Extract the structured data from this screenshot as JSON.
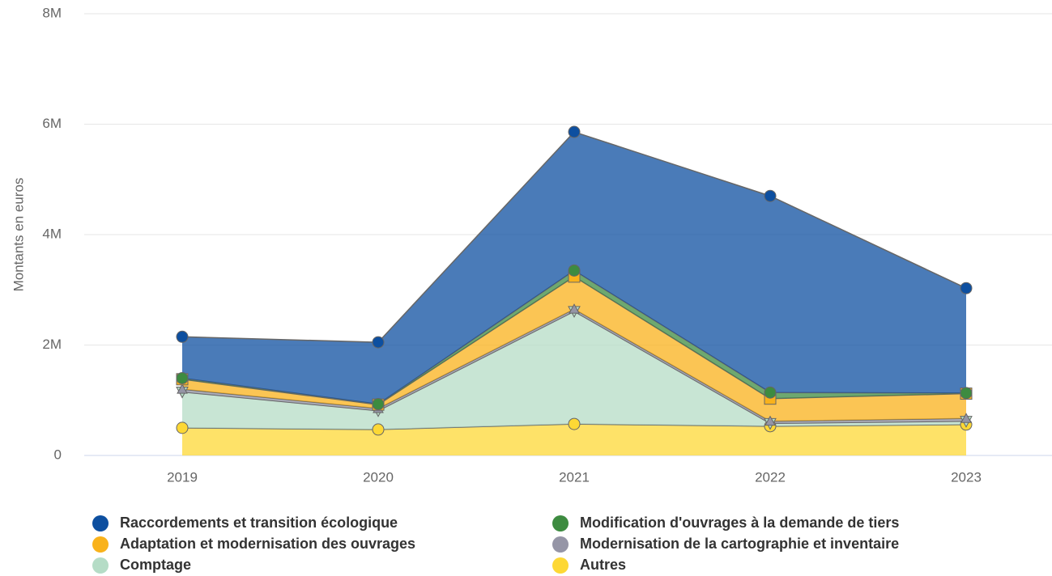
{
  "chart_data": {
    "type": "stacked_area",
    "y_label": "Montants en euros",
    "categories": [
      "2019",
      "2020",
      "2021",
      "2022",
      "2023"
    ],
    "ylim": [
      0,
      8000000
    ],
    "yticks": [
      0,
      {
        "value": 2000000,
        "label": "2M"
      },
      {
        "value": 4000000,
        "label": "4M"
      },
      {
        "value": 6000000,
        "label": "6M"
      },
      {
        "value": 8000000,
        "label": "8M"
      }
    ],
    "grid": true,
    "legend": "bottom",
    "series": [
      {
        "name": "Autres",
        "color": "#fdd835",
        "marker": "circle",
        "values": [
          500000,
          470000,
          570000,
          530000,
          560000
        ]
      },
      {
        "name": "Comptage",
        "color": "#b5dcc6",
        "marker": "triangle-down",
        "values": [
          650000,
          340000,
          2040000,
          50000,
          60000
        ]
      },
      {
        "name": "Modernisation de la cartographie et inventaire",
        "color": "#9595a6",
        "marker": "triangle",
        "values": [
          50000,
          40000,
          40000,
          40000,
          50000
        ]
      },
      {
        "name": "Adaptation et modernisation des ouvrages",
        "color": "#f9b21b",
        "marker": "square",
        "values": [
          180000,
          70000,
          590000,
          410000,
          450000
        ]
      },
      {
        "name": "Modification d'ouvrages à la demande de tiers",
        "color": "#3d8b40",
        "marker": "circle",
        "values": [
          20000,
          10000,
          110000,
          110000,
          10000
        ]
      },
      {
        "name": "Raccordements et transition écologique",
        "color": "#0d4fa0",
        "marker": "circle",
        "values": [
          750000,
          1120000,
          2510000,
          3560000,
          1900000
        ]
      }
    ],
    "legend_order": [
      5,
      4,
      3,
      2,
      1,
      0
    ]
  }
}
